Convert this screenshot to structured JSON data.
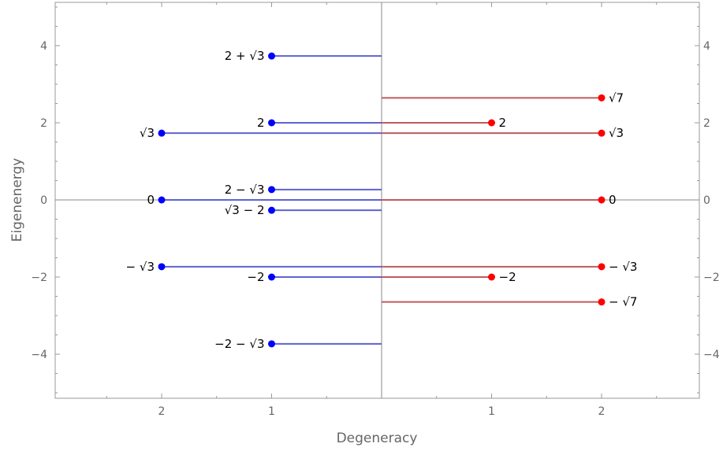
{
  "chart_data": {
    "type": "scatter",
    "xlabel": "Degeneracy",
    "ylabel": "Eigenenergy",
    "ylim": [
      -5.2,
      5.2
    ],
    "left_xlim": [
      3,
      0
    ],
    "right_xlim": [
      0,
      3
    ],
    "x_ticks_left": [
      {
        "v": 2,
        "label": "2"
      },
      {
        "v": 1,
        "label": "1"
      }
    ],
    "x_ticks_right": [
      {
        "v": 1,
        "label": "1"
      },
      {
        "v": 2,
        "label": "2"
      }
    ],
    "y_ticks": [
      {
        "v": 4,
        "label": "4"
      },
      {
        "v": 2,
        "label": "2"
      },
      {
        "v": 0,
        "label": "0"
      },
      {
        "v": -2,
        "label": "−2"
      },
      {
        "v": -4,
        "label": "−4"
      }
    ],
    "colors": {
      "left": "#0000ff",
      "right": "#ff0000",
      "left_line": "#5d63d1",
      "right_line": "#c05b5b",
      "frame": "#999999",
      "axis": "#888888"
    },
    "series": [
      {
        "side": "left",
        "points": [
          {
            "energy": 3.732,
            "degeneracy": 1,
            "label": "2 + √3"
          },
          {
            "energy": 2,
            "degeneracy": 1,
            "label": "2"
          },
          {
            "energy": 1.732,
            "degeneracy": 2,
            "label": "√3"
          },
          {
            "energy": 0.268,
            "degeneracy": 1,
            "label": "2 − √3"
          },
          {
            "energy": 0,
            "degeneracy": 2,
            "label": "0"
          },
          {
            "energy": -0.268,
            "degeneracy": 1,
            "label": "√3 − 2"
          },
          {
            "energy": -1.732,
            "degeneracy": 2,
            "label": "− √3"
          },
          {
            "energy": -2,
            "degeneracy": 1,
            "label": "−2"
          },
          {
            "energy": -3.732,
            "degeneracy": 1,
            "label": "−2 − √3"
          }
        ]
      },
      {
        "side": "right",
        "points": [
          {
            "energy": 2.646,
            "degeneracy": 2,
            "label": "√7"
          },
          {
            "energy": 2,
            "degeneracy": 1,
            "label": "2"
          },
          {
            "energy": 1.732,
            "degeneracy": 2,
            "label": "√3"
          },
          {
            "energy": 0,
            "degeneracy": 2,
            "label": "0"
          },
          {
            "energy": -1.732,
            "degeneracy": 2,
            "label": "− √3"
          },
          {
            "energy": -2,
            "degeneracy": 1,
            "label": "−2"
          },
          {
            "energy": -2.646,
            "degeneracy": 2,
            "label": "− √7"
          }
        ]
      }
    ]
  }
}
